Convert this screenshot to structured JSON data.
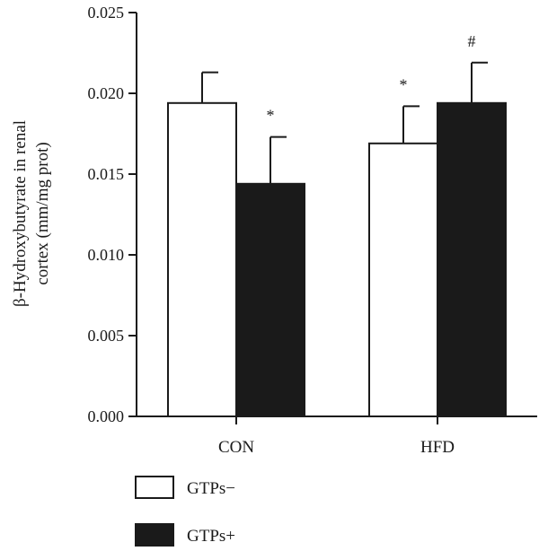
{
  "chart_data": {
    "type": "bar",
    "categories": [
      "CON",
      "HFD"
    ],
    "series": [
      {
        "name": "GTPs−",
        "values": [
          0.0194,
          0.0169
        ],
        "errors": [
          0.0019,
          0.0023
        ],
        "annotations": [
          "",
          "*"
        ],
        "color": "#ffffff"
      },
      {
        "name": "GTPs+",
        "values": [
          0.0144,
          0.0194
        ],
        "errors": [
          0.0029,
          0.0025
        ],
        "annotations": [
          "*",
          "#"
        ],
        "color": "#1a1a1a"
      }
    ],
    "ylabel_lines": [
      "β-Hydroxybutyrate in renal",
      "cortex (mm/mg prot)"
    ],
    "ylim": [
      0,
      0.025
    ],
    "yticks": [
      "0.000",
      "0.005",
      "0.010",
      "0.015",
      "0.020",
      "0.025"
    ],
    "legend_position": "bottom-left"
  }
}
